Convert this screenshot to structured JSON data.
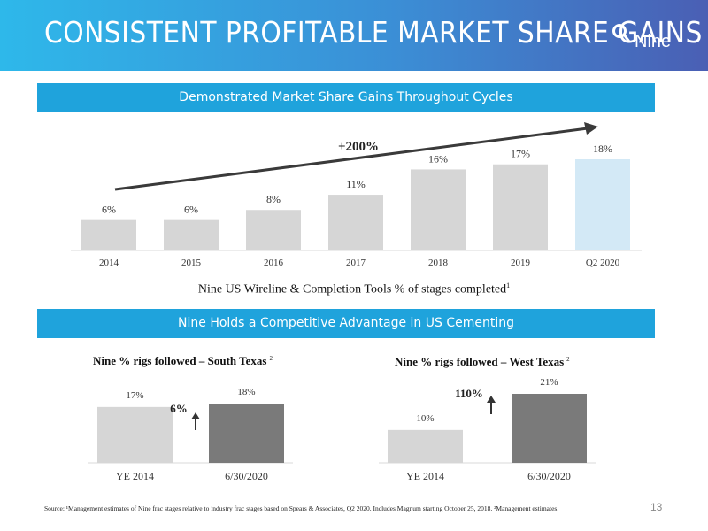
{
  "header": {
    "title": "CONSISTENT PROFITABLE MARKET SHARE GAINS",
    "logo_text": "Nine"
  },
  "sections": {
    "top_banner": "Demonstrated Market Share Gains Throughout Cycles",
    "bottom_banner": "Nine Holds a Competitive Advantage in US Cementing"
  },
  "colors": {
    "bar_gray": "#d6d6d6",
    "bar_highlight": "#d3e9f6",
    "bar_dark": "#7a7a7a",
    "banner": "#1fa3dc"
  },
  "chart_data": [
    {
      "type": "bar",
      "caption": "Nine US Wireline & Completion Tools % of stages completed",
      "caption_footnote_marker": "1",
      "categories": [
        "2014",
        "2015",
        "2016",
        "2017",
        "2018",
        "2019",
        "Q2 2020"
      ],
      "values": [
        6,
        6,
        8,
        11,
        16,
        17,
        18
      ],
      "value_labels": [
        "6%",
        "6%",
        "8%",
        "11%",
        "16%",
        "17%",
        "18%"
      ],
      "highlight_category": "Q2 2020",
      "annotation": "+200%",
      "ylim": [
        0,
        18
      ]
    },
    {
      "type": "bar",
      "title": "Nine % rigs followed – South Texas",
      "title_footnote_marker": "2",
      "categories": [
        "YE 2014",
        "6/30/2020"
      ],
      "values": [
        17,
        18
      ],
      "value_labels": [
        "17%",
        "18%"
      ],
      "annotation": "6%",
      "ylim": [
        0,
        18
      ]
    },
    {
      "type": "bar",
      "title": "Nine % rigs followed – West Texas",
      "title_footnote_marker": "2",
      "categories": [
        "YE 2014",
        "6/30/2020"
      ],
      "values": [
        10,
        21
      ],
      "value_labels": [
        "10%",
        "21%"
      ],
      "annotation": "110%",
      "ylim": [
        0,
        21
      ]
    }
  ],
  "footnote": "Source: ¹Management estimates of Nine frac stages relative to industry frac stages based on Spears & Associates, Q2 2020. Includes Magnum starting October 25, 2018. ²Management estimates.",
  "page_number": "13"
}
